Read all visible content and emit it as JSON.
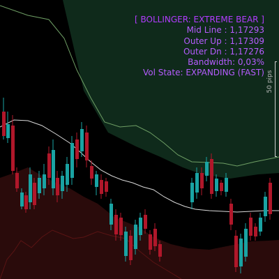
{
  "info_panel": {
    "title": "[ BOLLINGER: EXTREME BEAR ]",
    "mid_line": "Mid Line : 1,17293",
    "outer_up": "Outer Up : 1,17309",
    "outer_dn": "Outer Dn : 1,17276",
    "bandwidth": "Bandwidth: 0,03%",
    "vol_state": "Vol State: EXPANDING (FAST)"
  },
  "scale": {
    "label": "50 pips"
  },
  "colors": {
    "background": "#000000",
    "upper_band_fill": "#0f2a1b",
    "upper_band_edge": "#6f9f65",
    "lower_band_fill": "#2a0b0b",
    "lower_band_edge": "#6b1d1d",
    "mid_line": "#d9d9d9",
    "bull_candle": "#1aa3a3",
    "bear_candle": "#b0172a",
    "info_text": "#b65cff"
  }
}
